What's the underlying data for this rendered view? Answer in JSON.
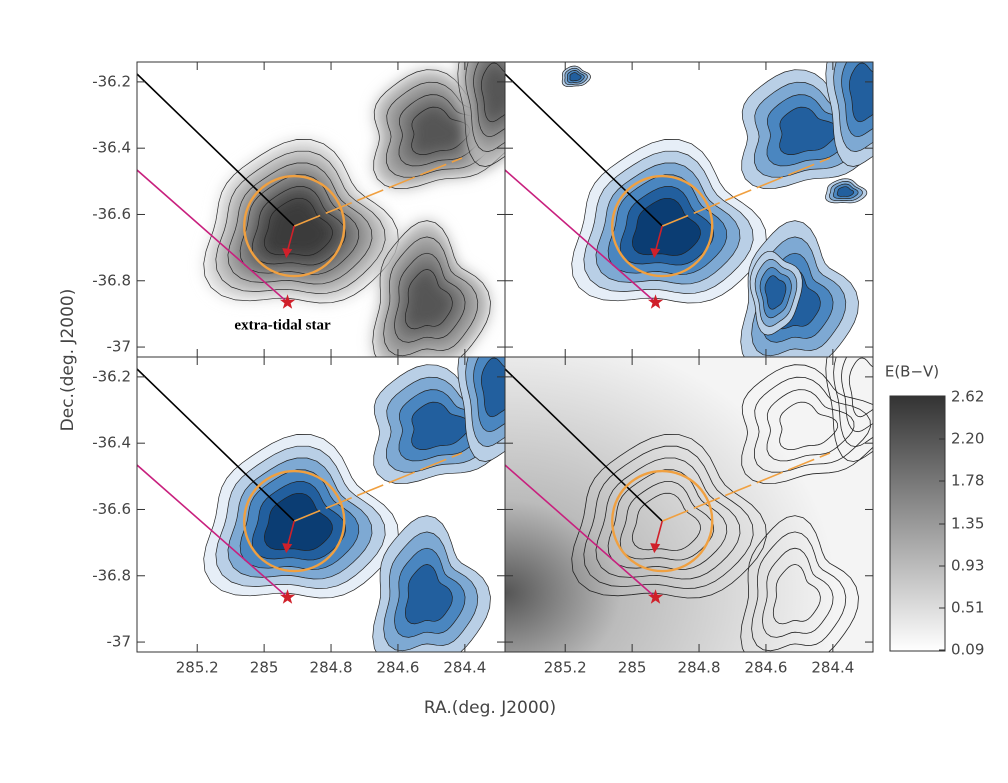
{
  "chart_data": {
    "type": "contour-map",
    "x_label": "RA.(deg. J2000)",
    "y_label": "Dec.(deg. J2000)",
    "xlim": [
      285.38,
      284.28
    ],
    "xticks": [
      285.2,
      285.0,
      284.8,
      284.6,
      284.4
    ],
    "ylim": [
      -37.03,
      -36.14
    ],
    "yticks": [
      -36.2,
      -36.4,
      -36.6,
      -36.8,
      -37.0
    ],
    "annotation": "extra-tidal star",
    "cluster_center": {
      "ra": 284.91,
      "dec": -36.635
    },
    "star": {
      "ra": 284.93,
      "dec": -36.865
    },
    "colorbar": {
      "label": "E(B−V)",
      "clim": [
        0.09,
        2.62
      ],
      "ticks": [
        0.09,
        0.51,
        0.93,
        1.35,
        1.78,
        {
          "value": 2.2,
          "label": "2.20"
        },
        2.62
      ]
    }
  }
}
